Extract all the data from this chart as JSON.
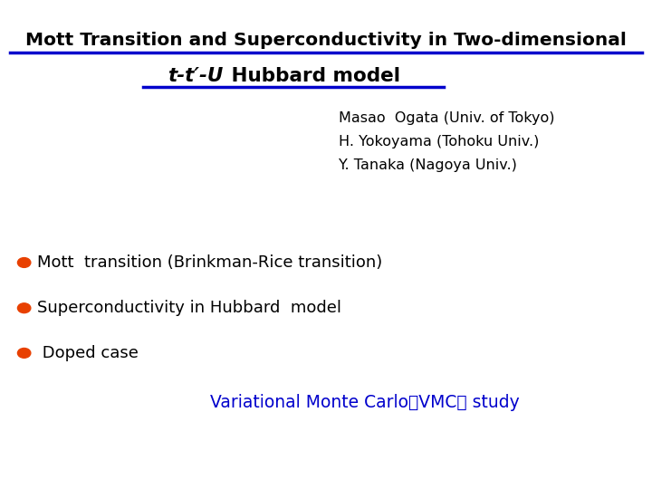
{
  "bg_color": "#ffffff",
  "title_line1": "Mott Transition and Superconductivity in Two-dimensional",
  "title_line2_normal": " Hubbard model",
  "title_color": "#000000",
  "title_underline_color": "#0000cc",
  "authors": [
    "Masao  Ogata (Univ. of Tokyo)",
    "H. Yokoyama (Tohoku Univ.)",
    "Y. Tanaka (Nagoya Univ.)"
  ],
  "bullet_color": "#e84000",
  "bullet_items": [
    "Mott  transition (Brinkman-Rice transition)",
    "Superconductivity in Hubbard  model",
    " Doped case"
  ],
  "vmc_text": "Variational Monte Carlo（VMC） study",
  "vmc_color": "#0000cc"
}
